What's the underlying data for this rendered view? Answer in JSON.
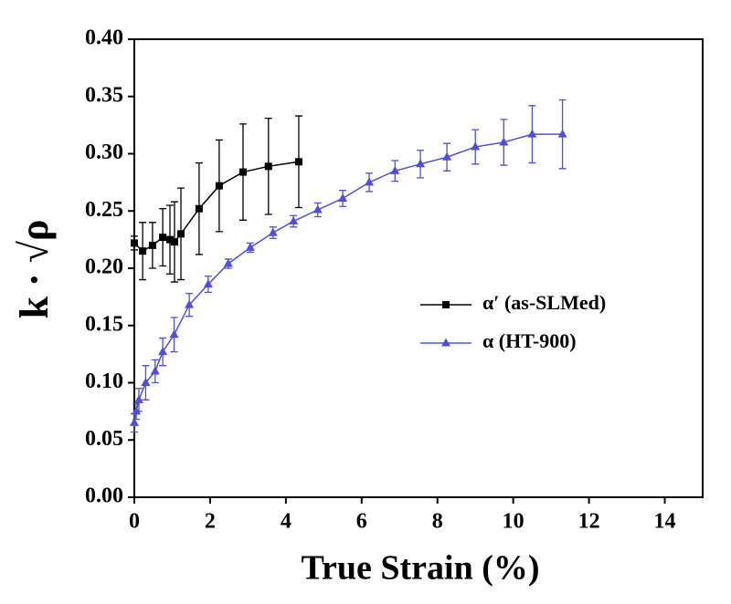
{
  "chart_data": {
    "type": "line",
    "xlabel": "True Strain (%)",
    "ylabel": "k · √ρ",
    "xlim": [
      0,
      15
    ],
    "xticks": [
      0,
      2,
      4,
      6,
      8,
      10,
      12,
      14
    ],
    "ylim": [
      0,
      0.4
    ],
    "yticks": [
      {
        "value": 0,
        "label": "0.00"
      },
      {
        "value": 0.05,
        "label": "0.05"
      },
      {
        "value": 0.1,
        "label": "0.10"
      },
      {
        "value": 0.15,
        "label": "0.15"
      },
      {
        "value": 0.2,
        "label": "0.20"
      },
      {
        "value": 0.25,
        "label": "0.25"
      },
      {
        "value": 0.3,
        "label": "0.30"
      },
      {
        "value": 0.35,
        "label": "0.35"
      },
      {
        "value": 0.4,
        "label": "0.40"
      }
    ],
    "legend": "right",
    "series": [
      {
        "name": "α′ (as-SLMed)",
        "color": "#000000",
        "marker": "square",
        "x": [
          0,
          0.22,
          0.48,
          0.75,
          0.94,
          1.06,
          1.23,
          1.71,
          2.24,
          2.87,
          3.54,
          4.34
        ],
        "values": [
          0.222,
          0.215,
          0.22,
          0.227,
          0.225,
          0.223,
          0.23,
          0.252,
          0.272,
          0.284,
          0.289,
          0.293
        ],
        "errors": [
          0.006,
          0.025,
          0.02,
          0.025,
          0.03,
          0.035,
          0.04,
          0.04,
          0.04,
          0.042,
          0.042,
          0.04
        ]
      },
      {
        "name": "α (HT-900)",
        "color": "#4f4fdc",
        "marker": "triangle",
        "x": [
          0,
          0.05,
          0.12,
          0.3,
          0.55,
          0.75,
          1.05,
          1.45,
          1.95,
          2.48,
          3.06,
          3.66,
          4.2,
          4.84,
          5.5,
          6.2,
          6.88,
          7.55,
          8.25,
          9.0,
          9.75,
          10.5,
          11.3
        ],
        "values": [
          0.065,
          0.075,
          0.085,
          0.1,
          0.11,
          0.127,
          0.142,
          0.168,
          0.186,
          0.204,
          0.218,
          0.231,
          0.241,
          0.251,
          0.261,
          0.275,
          0.285,
          0.291,
          0.297,
          0.306,
          0.31,
          0.317,
          0.317
        ],
        "errors": [
          0.008,
          0.007,
          0.01,
          0.015,
          0.01,
          0.012,
          0.015,
          0.01,
          0.007,
          0.004,
          0.004,
          0.005,
          0.005,
          0.006,
          0.007,
          0.008,
          0.009,
          0.012,
          0.012,
          0.015,
          0.02,
          0.025,
          0.03
        ]
      }
    ]
  }
}
